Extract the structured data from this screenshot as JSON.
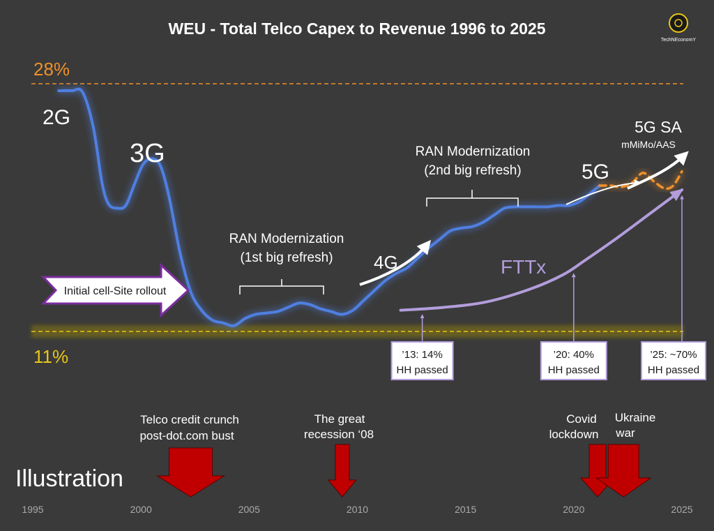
{
  "title": "WEU - Total Telco Capex to Revenue 1996 to 2025",
  "logo_text": "TechNEconomY",
  "watermark": "Illustration",
  "levels": {
    "top": {
      "label": "28%",
      "value": 28,
      "color": "#f0902a"
    },
    "bottom": {
      "label": "11%",
      "value": 11,
      "color": "#e8c619"
    }
  },
  "colors": {
    "capex_line": "#4f7fe0",
    "fttx_line": "#b39ddb",
    "fiveg_dashed": "#f0902a",
    "crisis_arrow": "#c00000",
    "background": "#3a3a3a"
  },
  "chart_data": {
    "type": "line",
    "title": "WEU - Total Telco Capex to Revenue 1996 to 2025",
    "x_ticks": [
      "1995",
      "2000",
      "2005",
      "2010",
      "2015",
      "2020",
      "2025"
    ],
    "xlim": [
      1995,
      2025
    ],
    "ylim": [
      11,
      28
    ],
    "reference_lines": [
      {
        "label": "28%",
        "y": 28
      },
      {
        "label": "11%",
        "y": 11
      }
    ],
    "series": [
      {
        "values_x": [
          1996.2,
          1996.8,
          1997.3,
          1997.8,
          1998.2,
          1998.5,
          1998.9,
          1999.3,
          1999.7,
          2000.1,
          2000.5,
          2000.9,
          2001.3,
          2001.8,
          2002.3,
          2002.8,
          2003.3,
          2003.8,
          2004.3,
          2004.8,
          2005.3,
          2005.8,
          2006.3,
          2006.8,
          2007.3,
          2007.8,
          2008.3,
          2008.8,
          2009.3,
          2009.8,
          2010.3,
          2010.8,
          2011.3,
          2011.8,
          2012.3,
          2012.8,
          2013.3,
          2013.8,
          2014.3,
          2014.8,
          2015.3,
          2015.8,
          2016.3,
          2016.8,
          2017.3,
          2017.8,
          2018.3,
          2018.8,
          2019.3,
          2019.8,
          2020.3,
          2020.8,
          2021.2
        ],
        "values_y": [
          28,
          28,
          27.9,
          25.4,
          21.5,
          20,
          19.7,
          19.9,
          21.4,
          22.8,
          23.2,
          22.7,
          20.5,
          16.6,
          13.8,
          12.5,
          11.8,
          11.6,
          11.4,
          11.9,
          12.2,
          12.3,
          12.4,
          12.7,
          13,
          12.9,
          12.6,
          12.4,
          12.2,
          12.5,
          13.2,
          13.9,
          14.6,
          15.1,
          15.5,
          16.2,
          16.9,
          17.5,
          18.1,
          18.3,
          18.4,
          18.7,
          19.2,
          19.7,
          19.8,
          19.8,
          19.8,
          19.8,
          19.9,
          19.9,
          20.2,
          20.8,
          21.3
        ]
      },
      {
        "values_x": [
          2021.2,
          2021.7,
          2022.2,
          2022.7,
          2023.2,
          2023.7,
          2024.2,
          2024.6,
          2025.0
        ],
        "values_y": [
          21.3,
          21.3,
          21.2,
          21.5,
          22.2,
          21.6,
          21.1,
          21.3,
          22.3
        ]
      },
      {
        "name": "FTTx",
        "values_x": [
          2012.0,
          2014,
          2016,
          2018,
          2019.5,
          2020.5,
          2022,
          2023.5,
          2025.0
        ],
        "values_y": [
          12.5,
          12.7,
          13.1,
          14,
          15,
          16,
          17.6,
          19.3,
          21.0
        ]
      }
    ],
    "annotations": [
      {
        "label": "2G",
        "x": 1996.1
      },
      {
        "label": "3G",
        "x": 2000.2
      },
      {
        "label": "4G",
        "x": 2011.6
      },
      {
        "label": "5G",
        "x": 2020.6
      },
      {
        "label": "5G SA",
        "sub": "mMiMo/AAS",
        "x": 2023.8
      },
      {
        "label": "RAN Modernization",
        "sub": "(1st big refresh)",
        "x": 2006.5
      },
      {
        "label": "RAN Modernization",
        "sub": "(2nd big refresh)",
        "x": 2015.5
      },
      {
        "label": "Initial cell-Site rollout"
      }
    ],
    "fttx_milestones": [
      {
        "x": 2013,
        "line1": "’13: 14%",
        "line2": "HH passed"
      },
      {
        "x": 2020,
        "line1": "’20: 40%",
        "line2": "HH passed"
      },
      {
        "x": 2025,
        "line1": "’25: ~70%",
        "line2": "HH passed"
      }
    ],
    "events": [
      {
        "x": 2002.3,
        "line1": "Telco credit crunch",
        "line2": "post-dot.com bust"
      },
      {
        "x": 2009.3,
        "line1": "The great",
        "line2": "recession ‘08"
      },
      {
        "x": 2021.1,
        "line1": "Covid",
        "line2": "lockdown"
      },
      {
        "x": 2022.3,
        "line1": "Ukraine",
        "line2": "war"
      }
    ]
  }
}
